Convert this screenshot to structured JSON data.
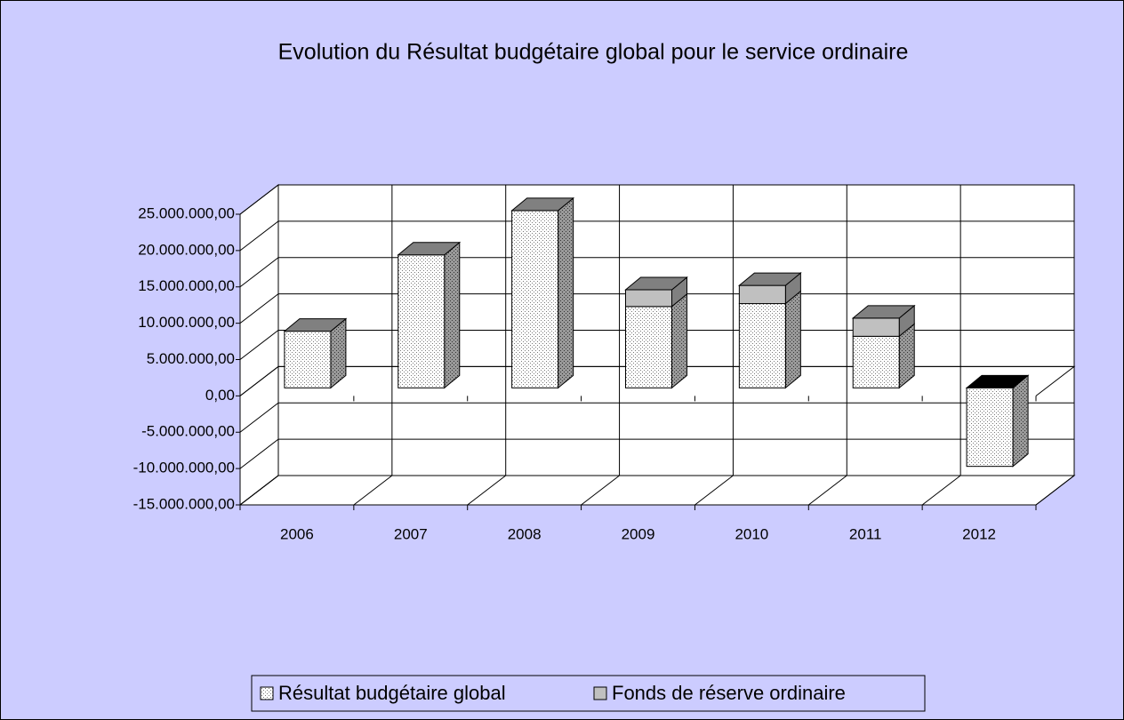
{
  "chart_data": {
    "type": "bar3d_stacked",
    "title": "Evolution du Résultat budgétaire global pour le service ordinaire",
    "categories": [
      "2006",
      "2007",
      "2008",
      "2009",
      "2010",
      "2011",
      "2012"
    ],
    "series": [
      {
        "name": "Résultat budgétaire global",
        "color": "#ffffff",
        "values": [
          7800000,
          18300000,
          24400000,
          11200000,
          11600000,
          7100000,
          -10800000
        ]
      },
      {
        "name": "Fonds de réserve ordinaire",
        "color": "#c0c0c0",
        "values": [
          0,
          0,
          0,
          2300000,
          2500000,
          2500000,
          0
        ]
      }
    ],
    "ylim": [
      -15000000,
      25000000
    ],
    "yticks": [
      {
        "value": -15000000,
        "label": "-15.000.000,00"
      },
      {
        "value": -10000000,
        "label": "-10.000.000,00"
      },
      {
        "value": -5000000,
        "label": "-5.000.000,00"
      },
      {
        "value": 0,
        "label": "0,00"
      },
      {
        "value": 5000000,
        "label": "5.000.000,00"
      },
      {
        "value": 10000000,
        "label": "10.000.000,00"
      },
      {
        "value": 15000000,
        "label": "15.000.000,00"
      },
      {
        "value": 20000000,
        "label": "20.000.000,00"
      },
      {
        "value": 25000000,
        "label": "25.000.000,00"
      }
    ],
    "grid": true,
    "legend": "bottom",
    "background": "#ccccff"
  }
}
